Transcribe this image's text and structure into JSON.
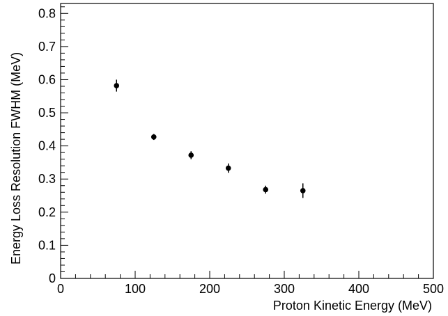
{
  "chart_data": {
    "type": "scatter",
    "xlabel": "Proton Kinetic Energy (MeV)",
    "ylabel": "Energy Loss Resolution FWHM (MeV)",
    "xlim": [
      0,
      500
    ],
    "ylim": [
      0,
      0.83
    ],
    "x_ticks": [
      0,
      100,
      200,
      300,
      400,
      500
    ],
    "x_tick_labels": [
      "0",
      "100",
      "200",
      "300",
      "400",
      "500"
    ],
    "y_ticks": [
      0,
      0.1,
      0.2,
      0.3,
      0.4,
      0.5,
      0.6,
      0.7,
      0.8
    ],
    "y_tick_labels": [
      "0",
      "0.1",
      "0.2",
      "0.3",
      "0.4",
      "0.5",
      "0.6",
      "0.7",
      "0.8"
    ],
    "grid": false,
    "legend": "none",
    "points": [
      {
        "x": 75,
        "y": 0.582,
        "err": 0.018
      },
      {
        "x": 125,
        "y": 0.427,
        "err": 0.009
      },
      {
        "x": 175,
        "y": 0.372,
        "err": 0.012
      },
      {
        "x": 225,
        "y": 0.333,
        "err": 0.014
      },
      {
        "x": 275,
        "y": 0.268,
        "err": 0.012
      },
      {
        "x": 325,
        "y": 0.265,
        "err": 0.022
      }
    ],
    "marker_color": "#000000"
  }
}
